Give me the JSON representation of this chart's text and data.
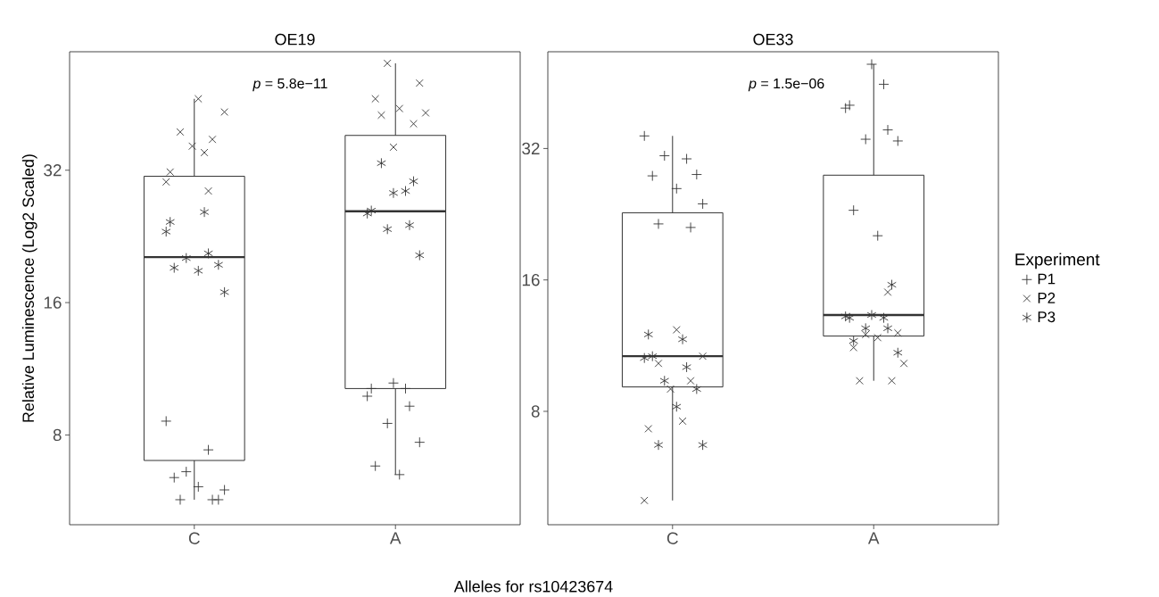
{
  "chart_data": [
    {
      "type": "box",
      "title": "OE19",
      "xlabel": "Alleles for rs10423674",
      "ylabel": "Relative Luminescence (Log2 Scaled)",
      "categories": [
        "C",
        "A"
      ],
      "log": "y",
      "ylim": [
        5.0,
        59.5
      ],
      "yticks": [
        8,
        16,
        32
      ],
      "boxes": [
        {
          "low": 5.7,
          "q1": 7.0,
          "median": 20.3,
          "q3": 31.0,
          "high": 46.5
        },
        {
          "low": 6.5,
          "q1": 10.2,
          "median": 25.8,
          "q3": 38.4,
          "high": 56.0
        }
      ],
      "series": [
        {
          "type": "scatter",
          "marker": "plus",
          "color": "#333333",
          "x": [
            "C",
            "C",
            "C",
            "C",
            "C",
            "C",
            "C",
            "C",
            "C",
            "A",
            "A",
            "A",
            "A",
            "A",
            "A",
            "A",
            "A",
            "A"
          ],
          "values": [
            8.6,
            7.4,
            6.6,
            5.7,
            6.4,
            6.1,
            6.0,
            5.7,
            5.7,
            10.5,
            10.2,
            10.2,
            9.8,
            9.3,
            8.5,
            7.7,
            6.8,
            6.5
          ]
        },
        {
          "type": "scatter",
          "marker": "cross",
          "color": "#333333",
          "x": [
            "C",
            "C",
            "C",
            "C",
            "C",
            "C",
            "C",
            "C",
            "C",
            "A",
            "A",
            "A",
            "A",
            "A",
            "A",
            "A",
            "A"
          ],
          "values": [
            46.5,
            43.4,
            39.1,
            37.6,
            36.3,
            35.1,
            31.7,
            30.1,
            28.7,
            56.0,
            50.5,
            46.5,
            44.2,
            43.2,
            42.7,
            40.8,
            36.1
          ]
        },
        {
          "type": "scatter",
          "color": "#333333",
          "x": [
            "C",
            "C",
            "C",
            "C",
            "C",
            "C",
            "C",
            "C",
            "C",
            "A",
            "A",
            "A",
            "A",
            "A",
            "A",
            "A",
            "A",
            "A"
          ],
          "values": [
            25.7,
            24.4,
            23.2,
            20.7,
            20.2,
            19.5,
            19.2,
            18.9,
            16.9,
            33.2,
            30.2,
            28.4,
            28.7,
            25.9,
            25.5,
            24.0,
            23.5,
            20.5
          ]
        }
      ],
      "annotations": [
        "*p* = 5.8e−11"
      ]
    },
    {
      "type": "box",
      "title": "OE33",
      "categories": [
        "C",
        "A"
      ],
      "log": "y",
      "ylim": [
        4.4,
        53.3
      ],
      "yticks": [
        8,
        16,
        32
      ],
      "legend": "right",
      "legend_title": "Experiment",
      "boxes": [
        {
          "low": 5.0,
          "q1": 9.1,
          "median": 10.7,
          "q3": 22.8,
          "high": 34.2
        },
        {
          "low": 9.4,
          "q1": 11.9,
          "median": 13.3,
          "q3": 27.8,
          "high": 49.9
        }
      ],
      "series": [
        {
          "name": "P1",
          "type": "scatter",
          "marker": "plus",
          "color": "#333333",
          "x": [
            "C",
            "C",
            "C",
            "C",
            "C",
            "C",
            "C",
            "C",
            "C",
            "A",
            "A",
            "A",
            "A",
            "A",
            "A",
            "A",
            "A",
            "A"
          ],
          "values": [
            34.2,
            30.3,
            30.8,
            27.9,
            27.7,
            25.9,
            23.9,
            21.5,
            21.1,
            49.9,
            44.9,
            40.2,
            39.6,
            35.3,
            33.6,
            33.3,
            23.1,
            20.2
          ]
        },
        {
          "name": "P2",
          "type": "scatter",
          "marker": "cross",
          "color": "#333333",
          "x": [
            "C",
            "C",
            "C",
            "C",
            "C",
            "C",
            "C",
            "C",
            "A",
            "A",
            "A",
            "A",
            "A",
            "A",
            "A",
            "A"
          ],
          "values": [
            12.3,
            10.7,
            10.3,
            9.4,
            9.0,
            7.6,
            7.3,
            5.0,
            15.0,
            12.0,
            12.1,
            11.2,
            11.8,
            10.3,
            9.4,
            9.4
          ]
        },
        {
          "name": "P3",
          "type": "scatter",
          "color": "#333333",
          "x": [
            "C",
            "C",
            "C",
            "C",
            "C",
            "C",
            "C",
            "C",
            "C",
            "C",
            "A",
            "A",
            "A",
            "A",
            "A",
            "A",
            "A",
            "A",
            "A"
          ],
          "values": [
            11.7,
            12.0,
            10.6,
            10.1,
            9.4,
            9.0,
            10.7,
            8.2,
            6.7,
            6.7,
            15.6,
            13.3,
            13.1,
            13.1,
            13.2,
            12.4,
            12.4,
            10.9,
            11.6
          ]
        }
      ],
      "annotations": [
        "*p* = 1.5e−06"
      ]
    }
  ]
}
